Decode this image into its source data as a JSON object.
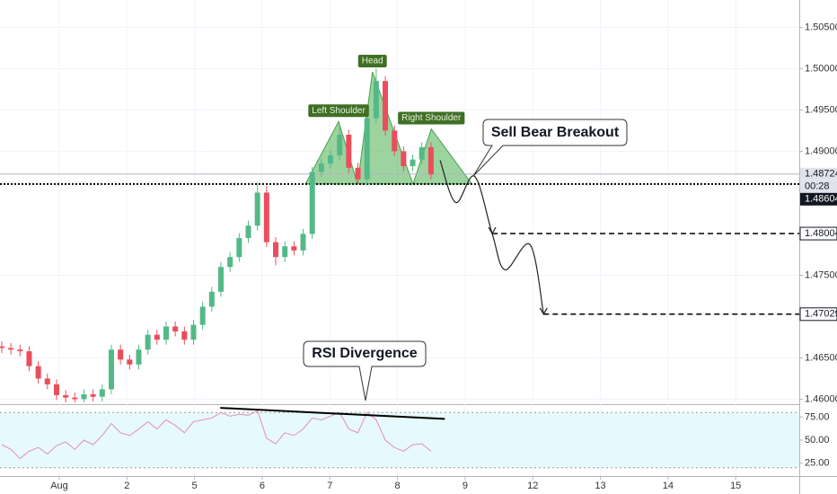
{
  "chart_data": {
    "type": "candlestick",
    "x": [
      -0.85,
      -0.715,
      -0.58,
      -0.445,
      -0.31,
      -0.175,
      -0.04,
      0.095,
      0.23,
      0.365,
      0.5,
      0.635,
      0.77,
      0.905,
      1.04,
      1.175,
      1.31,
      1.445,
      1.58,
      1.715,
      1.85,
      1.985,
      2.12,
      2.255,
      2.39,
      2.525,
      2.66,
      2.795,
      2.93,
      3.065,
      3.2,
      3.335,
      3.47,
      3.605,
      3.74,
      3.875,
      4.01,
      4.145,
      4.28,
      4.415,
      4.55,
      4.685,
      4.82,
      4.955,
      5.09,
      5.225,
      5.36,
      5.495
    ],
    "open": [
      1.4664,
      1.4662,
      1.466,
      1.4658,
      1.464,
      1.4625,
      1.4618,
      1.4605,
      1.4602,
      1.46,
      1.4606,
      1.4603,
      1.4612,
      1.466,
      1.4648,
      1.4642,
      1.466,
      1.4678,
      1.4672,
      1.4688,
      1.4682,
      1.4672,
      1.469,
      1.4712,
      1.473,
      1.476,
      1.4772,
      1.4795,
      1.481,
      1.485,
      1.479,
      1.4772,
      1.4785,
      1.478,
      1.48,
      1.4875,
      1.4885,
      1.4895,
      1.492,
      1.488,
      1.4866,
      1.494,
      1.4985,
      1.4925,
      1.49,
      1.4882,
      1.489,
      1.4905
    ],
    "high": [
      1.467,
      1.4668,
      1.4666,
      1.4664,
      1.4646,
      1.4631,
      1.4624,
      1.4611,
      1.4608,
      1.4612,
      1.4612,
      1.4618,
      1.4666,
      1.4666,
      1.4654,
      1.4666,
      1.4684,
      1.4684,
      1.4694,
      1.4694,
      1.4688,
      1.4696,
      1.4718,
      1.4736,
      1.4766,
      1.4778,
      1.4801,
      1.4816,
      1.4862,
      1.4858,
      1.4796,
      1.4791,
      1.4791,
      1.4806,
      1.4881,
      1.4891,
      1.4901,
      1.4932,
      1.4926,
      1.4886,
      1.4946,
      1.5,
      1.4991,
      1.4931,
      1.4906,
      1.4896,
      1.4911,
      1.4911
    ],
    "low": [
      1.4656,
      1.4654,
      1.4652,
      1.4634,
      1.4619,
      1.4612,
      1.4599,
      1.4596,
      1.4596,
      1.4596,
      1.4597,
      1.4597,
      1.4606,
      1.4642,
      1.4636,
      1.4636,
      1.4654,
      1.4666,
      1.4666,
      1.4676,
      1.4666,
      1.4666,
      1.4684,
      1.4706,
      1.4724,
      1.4754,
      1.4766,
      1.4789,
      1.4804,
      1.4784,
      1.4762,
      1.4766,
      1.4774,
      1.4774,
      1.4794,
      1.4869,
      1.4879,
      1.4889,
      1.4874,
      1.486,
      1.486,
      1.4934,
      1.4919,
      1.4894,
      1.4876,
      1.4876,
      1.4884,
      1.4866
    ],
    "close": [
      1.4662,
      1.466,
      1.4658,
      1.464,
      1.4625,
      1.4618,
      1.4605,
      1.4602,
      1.46,
      1.4606,
      1.4603,
      1.4612,
      1.466,
      1.4648,
      1.4642,
      1.466,
      1.4678,
      1.4672,
      1.4688,
      1.4682,
      1.4672,
      1.469,
      1.4712,
      1.473,
      1.476,
      1.4772,
      1.4795,
      1.481,
      1.485,
      1.479,
      1.4772,
      1.4785,
      1.478,
      1.48,
      1.4875,
      1.4885,
      1.4895,
      1.492,
      1.488,
      1.4866,
      1.494,
      1.4985,
      1.4925,
      1.49,
      1.4882,
      1.489,
      1.4905,
      1.4872
    ],
    "up_color": "#53b987",
    "down_color": "#eb4d5c",
    "xlim": [
      -0.876,
      10.94
    ],
    "xticks": [
      {
        "value": 0,
        "label": "Aug"
      },
      {
        "value": 1,
        "label": "2"
      },
      {
        "value": 2,
        "label": "5"
      },
      {
        "value": 3,
        "label": "6"
      },
      {
        "value": 4,
        "label": "7"
      },
      {
        "value": 5,
        "label": "8"
      },
      {
        "value": 6,
        "label": "9"
      },
      {
        "value": 7,
        "label": "12"
      },
      {
        "value": 8,
        "label": "13"
      },
      {
        "value": 9,
        "label": "14"
      },
      {
        "value": 10,
        "label": "15"
      }
    ],
    "ylim": [
      1.4594,
      1.5083
    ],
    "yticks": [
      {
        "value": 1.46,
        "label": "1.46000"
      },
      {
        "value": 1.465,
        "label": "1.46500"
      },
      {
        "value": 1.475,
        "label": "1.47500"
      },
      {
        "value": 1.49,
        "label": "1.49000"
      },
      {
        "value": 1.495,
        "label": "1.49500"
      },
      {
        "value": 1.5,
        "label": "1.50000"
      },
      {
        "value": 1.505,
        "label": "1.50500"
      }
    ],
    "grid": true,
    "last_price": 1.48724,
    "countdown": "00:28",
    "neckline": 1.48604,
    "patterns": [
      {
        "name": "Left Shoulder",
        "x": [
          3.64,
          4.13,
          4.41
        ],
        "values": [
          1.48604,
          1.4936,
          1.48604
        ]
      },
      {
        "name": "Head",
        "x": [
          4.41,
          4.63,
          5.23
        ],
        "values": [
          1.48604,
          1.4996,
          1.48604
        ]
      },
      {
        "name": "Right Shoulder",
        "x": [
          5.23,
          5.5,
          6.1
        ],
        "values": [
          1.48604,
          1.4927,
          1.48604
        ]
      }
    ],
    "projection": {
      "x": [
        5.63,
        5.86,
        6.14,
        6.4,
        6.59,
        6.96,
        7.16
      ],
      "values": [
        1.48891,
        1.4838,
        1.48696,
        1.48004,
        1.47565,
        1.4787,
        1.47029
      ]
    },
    "targets": [
      {
        "x": 6.4,
        "value": 1.48004
      },
      {
        "x": 7.16,
        "value": 1.47029
      }
    ],
    "annotations": [
      "Sell Bear Breakout",
      "RSI Divergence"
    ],
    "rsi": {
      "type": "line",
      "color": "#e58fb0",
      "values": [
        45,
        40,
        30,
        38,
        42,
        35,
        44,
        48,
        40,
        50,
        45,
        55,
        68,
        58,
        55,
        62,
        70,
        62,
        72,
        66,
        58,
        70,
        72,
        74,
        80,
        76,
        78,
        77,
        82,
        52,
        46,
        58,
        55,
        62,
        74,
        72,
        76,
        80,
        62,
        58,
        80,
        72,
        50,
        42,
        38,
        45,
        46,
        38
      ],
      "ylim": [
        11,
        89
      ],
      "yticks": [
        {
          "value": 25,
          "label": "25.00"
        },
        {
          "value": 50,
          "label": "50.00"
        },
        {
          "value": 75,
          "label": "75.00"
        }
      ],
      "band": [
        20,
        80
      ],
      "divergence": {
        "x": [
          2.38,
          5.7
        ],
        "values": [
          85,
          73
        ]
      }
    }
  }
}
